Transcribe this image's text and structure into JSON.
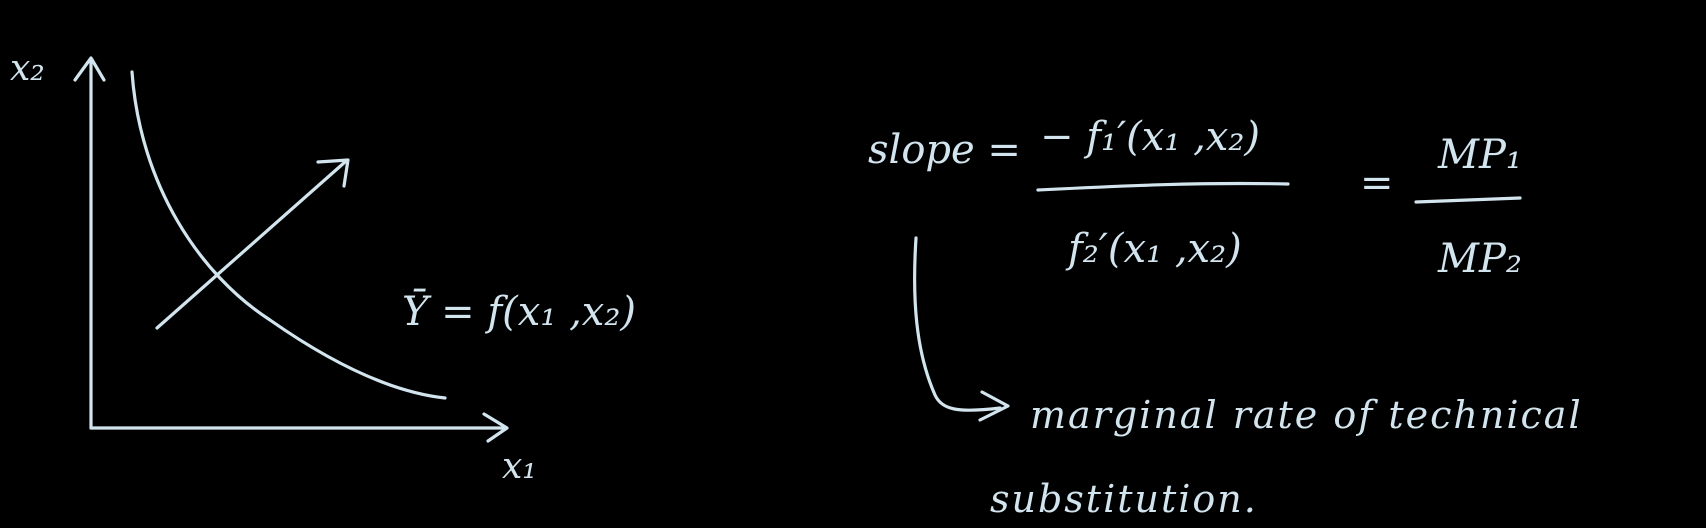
{
  "colors": {
    "background": "#000000",
    "ink": "#d2e4ee"
  },
  "graph": {
    "y_axis_label": "x₂",
    "x_axis_label": "x₁",
    "curve_label": "Ȳ = f(x₁ ,x₂)"
  },
  "formula": {
    "lhs": "slope =",
    "numerator": "− f₁′(x₁ ,x₂)",
    "denominator": "f₂′(x₁ ,x₂)",
    "equals": "=",
    "rhs_numerator": "MP₁",
    "rhs_denominator": "MP₂"
  },
  "note": {
    "line1": "marginal  rate  of  technical",
    "line2": "substitution."
  }
}
